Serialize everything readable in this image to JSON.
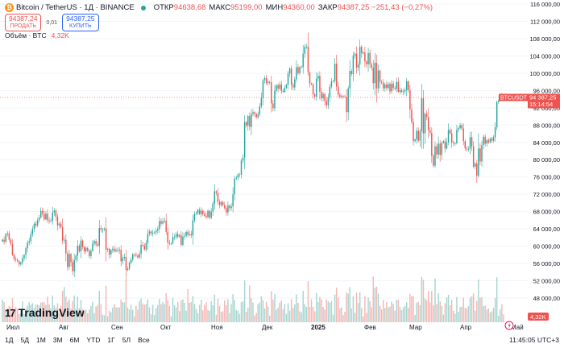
{
  "header": {
    "symbol_title": "Bitcoin / TetherUS · 1Д · BINANCE",
    "coin_icon": "bitcoin-icon",
    "ohlc": [
      {
        "key": "ОТКР",
        "val": "94638,68"
      },
      {
        "key": "МАКС",
        "val": "95199,00"
      },
      {
        "key": "МИН",
        "val": "94360,00"
      },
      {
        "key": "ЗАКР",
        "val": "94387,25 −251,43 (−0,27%)"
      }
    ]
  },
  "trade": {
    "sell_price": "94387,24",
    "sell_label": "ПРОДАТЬ",
    "spread": "0,01",
    "buy_price": "94387,25",
    "buy_label": "КУПИТЬ"
  },
  "volume_legend": {
    "label": "Объём · BTC",
    "value": "4,32K"
  },
  "price_axis": {
    "labels": [
      "116 000,00",
      "112 000,00",
      "108 000,00",
      "104 000,00",
      "100 000,00",
      "96 000,00",
      "92 000,00",
      "88 000,00",
      "84 000,00",
      "80 000,00",
      "76 000,00",
      "72 000,00",
      "68 000,00",
      "64 000,00",
      "60 000,00",
      "56 000,00",
      "52 000,00",
      "48 000,00"
    ],
    "last_price_tag": {
      "symbol": "BTCUSDT",
      "price": "94 387,25",
      "countdown": "15:14:54"
    },
    "volume_tag": "4,32K"
  },
  "time_axis": {
    "labels": [
      "Июл",
      "Авг",
      "Сен",
      "Окт",
      "Ноя",
      "Дек",
      "2025",
      "Фев",
      "Мар",
      "Апр",
      "Май"
    ]
  },
  "logo": {
    "text": "TradingView",
    "mark": "17"
  },
  "bottom_bar": {
    "periods": [
      "1Д",
      "5Д",
      "1М",
      "3М",
      "6М",
      "YTD",
      "1Г",
      "5Л",
      "Все"
    ],
    "clock": "11:45:05 UTC+3"
  },
  "colors": {
    "up": "#26a69a",
    "down": "#ef5350",
    "grid": "#f0f3fa",
    "text": "#131722"
  },
  "chart_data": {
    "type": "candlestick",
    "title": "Bitcoin / TetherUS · 1Д · BINANCE",
    "interval": "1D",
    "y_range": [
      46000,
      117000
    ],
    "x_start": "2024-06-27",
    "closes": [
      61500,
      61000,
      62800,
      63000,
      61500,
      60500,
      58000,
      57000,
      56800,
      56500,
      55800,
      56200,
      57200,
      58000,
      59500,
      60800,
      61200,
      62800,
      64000,
      65200,
      64800,
      66000,
      66600,
      68200,
      67500,
      66200,
      67500,
      66000,
      65800,
      65900,
      67800,
      68200,
      66800,
      64800,
      65200,
      64400,
      61300,
      61500,
      58300,
      55200,
      58200,
      56300,
      54200,
      56800,
      57800,
      60100,
      58800,
      61300,
      59800,
      58800,
      59600,
      59000,
      57700,
      58900,
      60600,
      61200,
      60400,
      60100,
      64200,
      63800,
      63900,
      64100,
      59200,
      59400,
      58100,
      59100,
      59400,
      58800,
      59100,
      59000,
      59200,
      56500,
      57300,
      57500,
      54500,
      54800,
      56200,
      56900,
      58100,
      58000,
      57800,
      57400,
      58200,
      60300,
      60100,
      59200,
      60700,
      62900,
      63400,
      62900,
      63100,
      63200,
      63600,
      64000,
      65800,
      65200,
      65700,
      65900,
      63300,
      60800,
      60600,
      60600,
      62100,
      62100,
      62800,
      62200,
      62500,
      60300,
      62200,
      62400,
      63300,
      62600,
      62800,
      62500,
      66000,
      67400,
      67600,
      68400,
      67400,
      68200,
      67400,
      67000,
      66700,
      68200,
      66600,
      68000,
      69900,
      72700,
      72300,
      70300,
      69500,
      70200,
      69500,
      68800,
      67800,
      69400,
      68800,
      69200,
      72000,
      75600,
      75800,
      76600,
      76500,
      79800,
      80500,
      88700,
      87900,
      90100,
      87600,
      90600,
      91000,
      90600,
      89800,
      90500,
      92300,
      94300,
      98400,
      98900,
      97700,
      98000,
      97900,
      93000,
      91900,
      95900,
      97200,
      96400,
      97400,
      95900,
      95700,
      96600,
      97400,
      99900,
      101100,
      97300,
      96700,
      98600,
      101400,
      100000,
      101400,
      101400,
      104500,
      106100,
      106200,
      100200,
      97600,
      97400,
      95100,
      94600,
      98700,
      99400,
      95700,
      94200,
      95200,
      93600,
      92600,
      94400,
      96900,
      98100,
      98200,
      102200,
      96900,
      95000,
      94500,
      94700,
      94600,
      94500,
      91000,
      96500,
      100500,
      99800,
      104100,
      104500,
      101300,
      102000,
      106100,
      104600,
      104800,
      102700,
      102100,
      104700,
      102000,
      101300,
      97700,
      102400,
      96500,
      100600,
      98000,
      97800,
      96500,
      97400,
      96600,
      97500,
      95800,
      97600,
      96600,
      96400,
      98000,
      95700,
      96100,
      95700,
      95800,
      96100,
      98100,
      96100,
      91600,
      88700,
      84300,
      84700,
      86700,
      84400,
      86600,
      94200,
      86100,
      90600,
      89900,
      86800,
      86200,
      80900,
      78600,
      83100,
      81200,
      83700,
      81100,
      83900,
      84300,
      82600,
      84000,
      86900,
      86100,
      84000,
      83800,
      83800,
      86900,
      87300,
      88000,
      87200,
      84300,
      82600,
      82400,
      82500,
      85200,
      83100,
      78400,
      79100,
      76300,
      82600,
      79600,
      83400,
      85300,
      83700,
      84500,
      84000,
      84900,
      84400,
      85200,
      87500,
      93400,
      93700,
      94700,
      94600,
      94400
    ]
  }
}
